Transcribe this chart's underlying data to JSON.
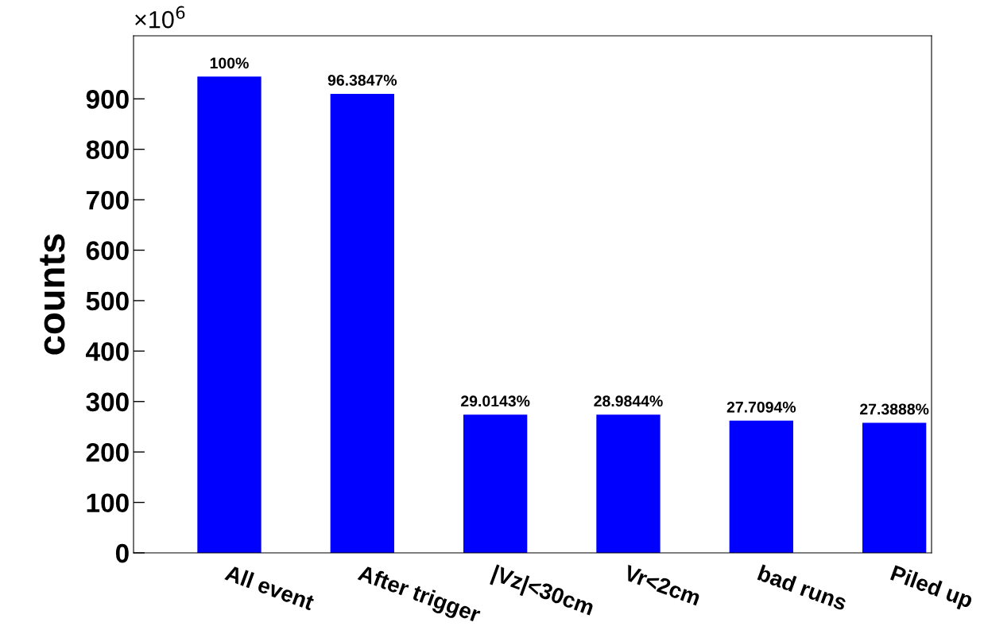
{
  "chart_data": {
    "type": "bar",
    "ylabel": "counts",
    "categories": [
      "All event",
      "After trigger",
      "|Vz|<30cm",
      "Vr<2cm",
      "bad runs",
      "Piled up"
    ],
    "values": [
      944,
      910,
      274,
      274,
      262,
      258
    ],
    "color": "#0000ff",
    "ylim": [
      0,
      1025
    ],
    "yticks": [
      0,
      100,
      200,
      300,
      400,
      500,
      600,
      700,
      800,
      900
    ],
    "grid": false,
    "legend": false,
    "annotations": [
      "×10$^{6}$",
      {
        "text": "100%",
        "x": "All event",
        "y": 944
      },
      {
        "text": "96.3847%",
        "x": "After trigger",
        "y": 910
      },
      {
        "text": "29.0143%",
        "x": "|Vz|<30cm",
        "y": 274
      },
      {
        "text": "28.9844%",
        "x": "Vr<2cm",
        "y": 274
      },
      {
        "text": "27.7094%",
        "x": "bad runs",
        "y": 262
      },
      {
        "text": "27.3888%",
        "x": "Piled up",
        "y": 258
      }
    ]
  }
}
